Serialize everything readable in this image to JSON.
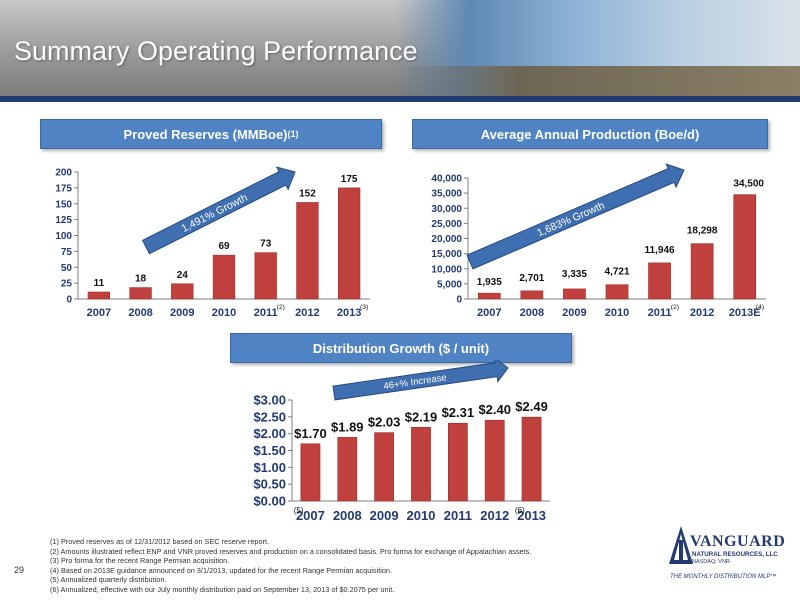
{
  "page": {
    "title": "Summary Operating Performance",
    "page_number": "29"
  },
  "colors": {
    "bar": "#c0403d",
    "arrow": "#3f6fb0",
    "navy": "#233a73",
    "panel": "#4f83c3"
  },
  "footnotes": [
    "(1)  Proved reserves as of 12/31/2012 based on SEC reserve report.",
    "(2)  Amounts illustrated reflect ENP and VNR proved reserves and production on a consolidated basis. Pro forma for exchange of Appalachian assets.",
    "(3)  Pro forma for the recent Range Permian acquisition.",
    "(4)  Based on 2013E guidance announced on 3/1/2013, updated for the recent Range Permian acquisition.",
    "(5)  Annualized quarterly distribution.",
    "(6)  Annualized, effective with our July monthly distribution paid on September 13, 2013 of $0.2075 per unit."
  ],
  "logo": {
    "name": "VANGUARD",
    "subtitle": "NATURAL RESOURCES, LLC",
    "ticker": "NASDAQ: VNR",
    "tagline": "THE MONTHLY DISTRIBUTION MLP™"
  },
  "chart_data": [
    {
      "type": "bar",
      "title": "Proved Reserves (MMBoe)",
      "title_sup": "(1)",
      "categories": [
        "2007",
        "2008",
        "2009",
        "2010",
        "2011",
        "2012",
        "2013"
      ],
      "category_notes": [
        "",
        "",
        "",
        "",
        "(2)",
        "",
        "(3)"
      ],
      "values": [
        11,
        18,
        24,
        69,
        73,
        152,
        175
      ],
      "value_labels": [
        "11",
        "18",
        "24",
        "69",
        "73",
        "152",
        "175"
      ],
      "ylim": [
        0,
        200
      ],
      "yticks": [
        "0",
        "25",
        "50",
        "75",
        "100",
        "125",
        "150",
        "175",
        "200"
      ],
      "annotation": "1,491% Growth",
      "grid": false,
      "legend": "none"
    },
    {
      "type": "bar",
      "title": "Average Annual Production (Boe/d)",
      "categories": [
        "2007",
        "2008",
        "2009",
        "2010",
        "2011",
        "2012",
        "2013E"
      ],
      "category_notes": [
        "",
        "",
        "",
        "",
        "(2)",
        "",
        "(4)"
      ],
      "values": [
        1935,
        2701,
        3335,
        4721,
        11946,
        18298,
        34500
      ],
      "value_labels": [
        "1,935",
        "2,701",
        "3,335",
        "4,721",
        "11,946",
        "18,298",
        "34,500"
      ],
      "ylim": [
        0,
        40000
      ],
      "yticks": [
        "0",
        "5,000",
        "10,000",
        "15,000",
        "20,000",
        "25,000",
        "30,000",
        "35,000",
        "40,000"
      ],
      "annotation": "1,683% Growth",
      "grid": false,
      "legend": "none"
    },
    {
      "type": "bar",
      "title": "Distribution Growth ($ / unit)",
      "categories": [
        "2007",
        "2008",
        "2009",
        "2010",
        "2011",
        "2012",
        "2013"
      ],
      "category_notes": [
        "(5)",
        "",
        "",
        "",
        "",
        "",
        "(6)"
      ],
      "values": [
        1.7,
        1.89,
        2.03,
        2.19,
        2.31,
        2.4,
        2.49
      ],
      "value_labels": [
        "$1.70",
        "$1.89",
        "$2.03",
        "$2.19",
        "$2.31",
        "$2.40",
        "$2.49"
      ],
      "ylim": [
        0,
        3
      ],
      "yticks": [
        "$0.00",
        "$0.50",
        "$1.00",
        "$1.50",
        "$2.00",
        "$2.50",
        "$3.00"
      ],
      "annotation": "46+% Increase",
      "grid": false,
      "legend": "none"
    }
  ]
}
